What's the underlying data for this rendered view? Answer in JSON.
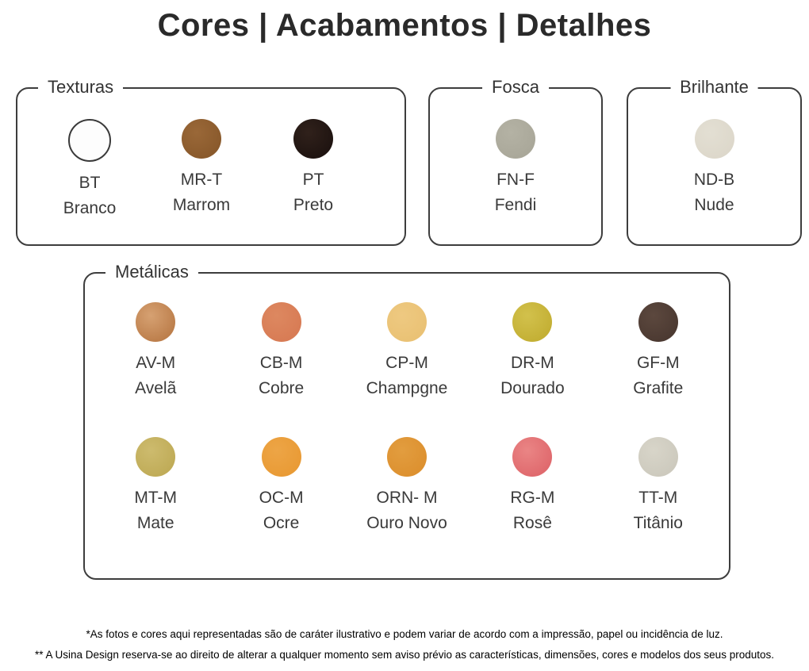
{
  "title": "Cores | Acabamentos | Detalhes",
  "sections": [
    {
      "id": "texturas",
      "label": "Texturas",
      "swatches": [
        {
          "code": "BT",
          "name": "Branco",
          "color": "#fdfdfd",
          "outline": "#3a3a3a"
        },
        {
          "code": "MR-T",
          "name": "Marrom",
          "color": "#8a5a2c",
          "color2": "#9a6838"
        },
        {
          "code": "PT",
          "name": "Preto",
          "color": "#1f1411",
          "color2": "#30211b"
        }
      ]
    },
    {
      "id": "fosca",
      "label": "Fosca",
      "swatches": [
        {
          "code": "FN-F",
          "name": "Fendi",
          "color": "#aaa89a",
          "color2": "#b4b2a4"
        }
      ]
    },
    {
      "id": "brilhante",
      "label": "Brilhante",
      "swatches": [
        {
          "code": "ND-B",
          "name": "Nude",
          "color": "#ddd8cb",
          "color2": "#e3dfd3"
        }
      ]
    },
    {
      "id": "metalicas",
      "label": "Metálicas",
      "swatches": [
        {
          "code": "AV-M",
          "name": "Avelã",
          "color": "#bd7f4c",
          "color2": "#d6a172"
        },
        {
          "code": "CB-M",
          "name": "Cobre",
          "color": "#d87c55",
          "color2": "#dd8860"
        },
        {
          "code": "CP-M",
          "name": "Champgne",
          "color": "#eac275",
          "color2": "#eec981"
        },
        {
          "code": "DR-M",
          "name": "Dourado",
          "color": "#c4b035",
          "color2": "#d2c14c"
        },
        {
          "code": "GF-M",
          "name": "Grafite",
          "color": "#4c3a32",
          "color2": "#5c483e"
        },
        {
          "code": "MT-M",
          "name": "Mate",
          "color": "#c0ac58",
          "color2": "#cdbb6e"
        },
        {
          "code": "OC-M",
          "name": "Ocre",
          "color": "#e99b36",
          "color2": "#eda546"
        },
        {
          "code": "ORN- M",
          "name": "Ouro Novo",
          "color": "#dd9130",
          "color2": "#e29d3f"
        },
        {
          "code": "RG-M",
          "name": "Rosê",
          "color": "#e06a6e",
          "color2": "#ea8585"
        },
        {
          "code": "TT-M",
          "name": "Titânio",
          "color": "#cdcabe",
          "color2": "#d8d5c9"
        }
      ]
    }
  ],
  "footnotes": [
    "*As fotos e cores aqui representadas são de caráter ilustrativo e podem variar de acordo com a impressão, papel ou incidência de luz.",
    "** A Usina Design reserva-se ao direito de alterar a qualquer momento sem aviso prévio as características, dimensões, cores e modelos dos seus produtos."
  ]
}
